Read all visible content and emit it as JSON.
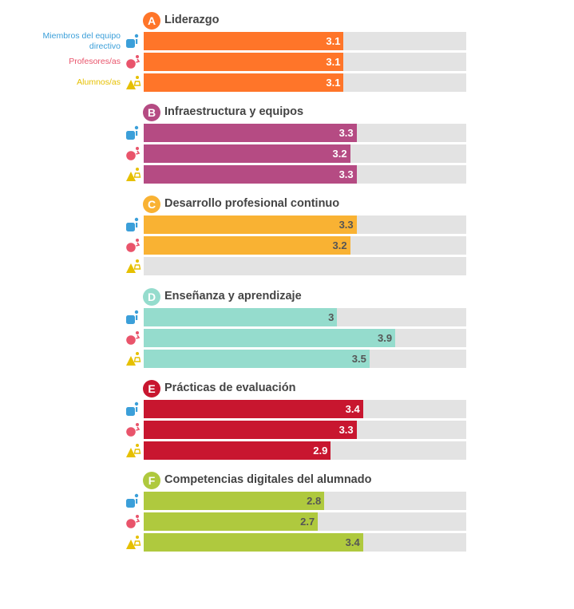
{
  "chart_data": {
    "type": "bar",
    "orientation": "horizontal",
    "xlim": [
      0,
      5
    ],
    "grid": false,
    "roles": [
      {
        "key": "directivo",
        "label_lines": [
          "Miembros del equipo",
          "directivo"
        ],
        "color": "#3b9fd9",
        "icon": "school-leader-icon"
      },
      {
        "key": "profesores",
        "label_lines": [
          "Profesores/as"
        ],
        "color": "#e9546b",
        "icon": "teacher-icon"
      },
      {
        "key": "alumnos",
        "label_lines": [
          "Alumnos/as"
        ],
        "color": "#e6c000",
        "icon": "student-icon"
      }
    ],
    "sections": [
      {
        "letter": "A",
        "title": "Liderazgo",
        "color": "#ff7529",
        "value_color": "#ffffff",
        "values": [
          3.1,
          3.1,
          3.1
        ]
      },
      {
        "letter": "B",
        "title": "Infraestructura y equipos",
        "color": "#b54b83",
        "value_color": "#ffffff",
        "values": [
          3.3,
          3.2,
          3.3
        ]
      },
      {
        "letter": "C",
        "title": "Desarrollo profesional continuo",
        "color": "#f9b233",
        "value_color": "#555555",
        "values": [
          3.3,
          3.2,
          null
        ]
      },
      {
        "letter": "D",
        "title": "Enseñanza y aprendizaje",
        "color": "#95dccd",
        "value_color": "#555555",
        "values": [
          3,
          3.9,
          3.5
        ]
      },
      {
        "letter": "E",
        "title": "Prácticas de evaluación",
        "color": "#c8162f",
        "value_color": "#ffffff",
        "values": [
          3.4,
          3.3,
          2.9
        ]
      },
      {
        "letter": "F",
        "title": "Competencias digitales del alumnado",
        "color": "#afc93e",
        "value_color": "#555555",
        "values": [
          2.8,
          2.7,
          3.4
        ]
      }
    ]
  }
}
